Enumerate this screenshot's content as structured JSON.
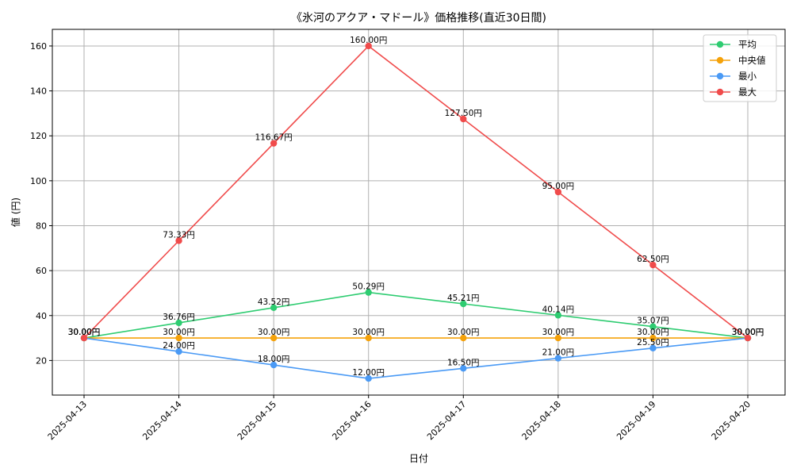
{
  "chart_data": {
    "type": "line",
    "title": "《氷河のアクア・マドール》価格推移(直近30日間)",
    "xlabel": "日付",
    "ylabel": "値 (円)",
    "categories": [
      "2025-04-13",
      "2025-04-14",
      "2025-04-15",
      "2025-04-16",
      "2025-04-17",
      "2025-04-18",
      "2025-04-19",
      "2025-04-20"
    ],
    "ylim": [
      4.6,
      167.4
    ],
    "yticks": [
      20,
      40,
      60,
      80,
      100,
      120,
      140,
      160
    ],
    "grid": true,
    "legend_position": "top-right",
    "unit_suffix": "円",
    "series": [
      {
        "name": "平均",
        "color": "#2ecc71",
        "values": [
          30.0,
          36.76,
          43.52,
          50.29,
          45.21,
          40.14,
          35.07,
          30.0
        ],
        "labels": [
          "30.00円",
          "36.76円",
          "43.52円",
          "50.29円",
          "45.21円",
          "40.14円",
          "35.07円",
          "30.00円"
        ]
      },
      {
        "name": "中央値",
        "color": "#f5a20a",
        "values": [
          30.0,
          30.0,
          30.0,
          30.0,
          30.0,
          30.0,
          30.0,
          30.0
        ],
        "labels": [
          "30.00円",
          "30.00円",
          "30.00円",
          "30.00円",
          "30.00円",
          "30.00円",
          "30.00円",
          "30.00円"
        ]
      },
      {
        "name": "最小",
        "color": "#4a9af5",
        "values": [
          30.0,
          24.0,
          18.0,
          12.0,
          16.5,
          21.0,
          25.5,
          30.0
        ],
        "labels": [
          "30.00円",
          "24.00円",
          "18.00円",
          "12.00円",
          "16.50円",
          "21.00円",
          "25.50円",
          "30.00円"
        ]
      },
      {
        "name": "最大",
        "color": "#f04b4b",
        "values": [
          30.0,
          73.33,
          116.67,
          160.0,
          127.5,
          95.0,
          62.5,
          30.0
        ],
        "labels": [
          "30.00円",
          "73.33円",
          "116.67円",
          "160.00円",
          "127.50円",
          "95.00円",
          "62.50円",
          "30.00円"
        ]
      }
    ]
  }
}
